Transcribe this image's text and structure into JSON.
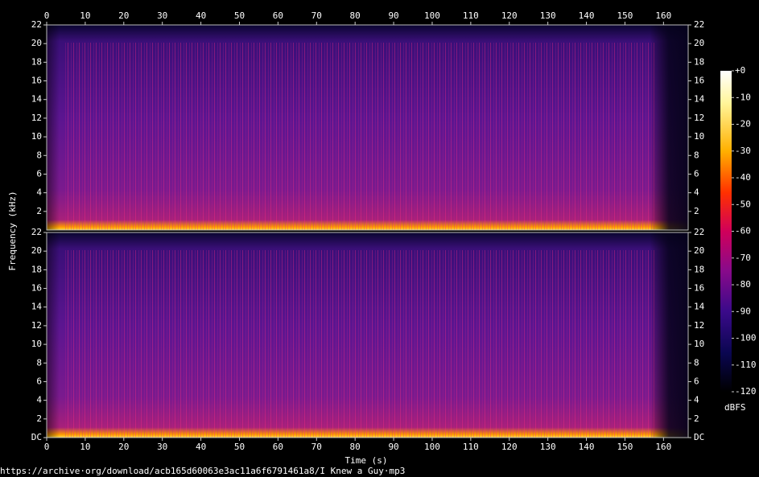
{
  "chart_data": {
    "type": "spectrogram",
    "x_label": "Time (s)",
    "y_label": "Frequency (kHz)",
    "xlim": [
      0,
      166.4
    ],
    "xticks": [
      0,
      10,
      20,
      30,
      40,
      50,
      60,
      70,
      80,
      90,
      100,
      110,
      120,
      130,
      140,
      150,
      160
    ],
    "panels": [
      {
        "ylim": [
          0,
          22
        ],
        "yticks": [
          2,
          4,
          6,
          8,
          10,
          12,
          14,
          16,
          18,
          20,
          22
        ]
      },
      {
        "ylim": [
          0,
          22
        ],
        "yticks": [
          {
            "value": 0,
            "label": "DC"
          },
          2,
          4,
          6,
          8,
          10,
          12,
          14,
          16,
          18,
          20,
          22
        ]
      }
    ],
    "colorbar": {
      "label": "dBFS",
      "lim": [
        -120,
        0
      ],
      "ticks": [
        {
          "value": 0,
          "label": "+0"
        },
        -10,
        -20,
        -30,
        -40,
        -50,
        -60,
        -70,
        -80,
        -90,
        -100,
        -110,
        -120
      ]
    },
    "footer": "https://archive·org/download/acb165d60063e3ac11a6f6791461a8/I Knew a Guy·mp3"
  }
}
